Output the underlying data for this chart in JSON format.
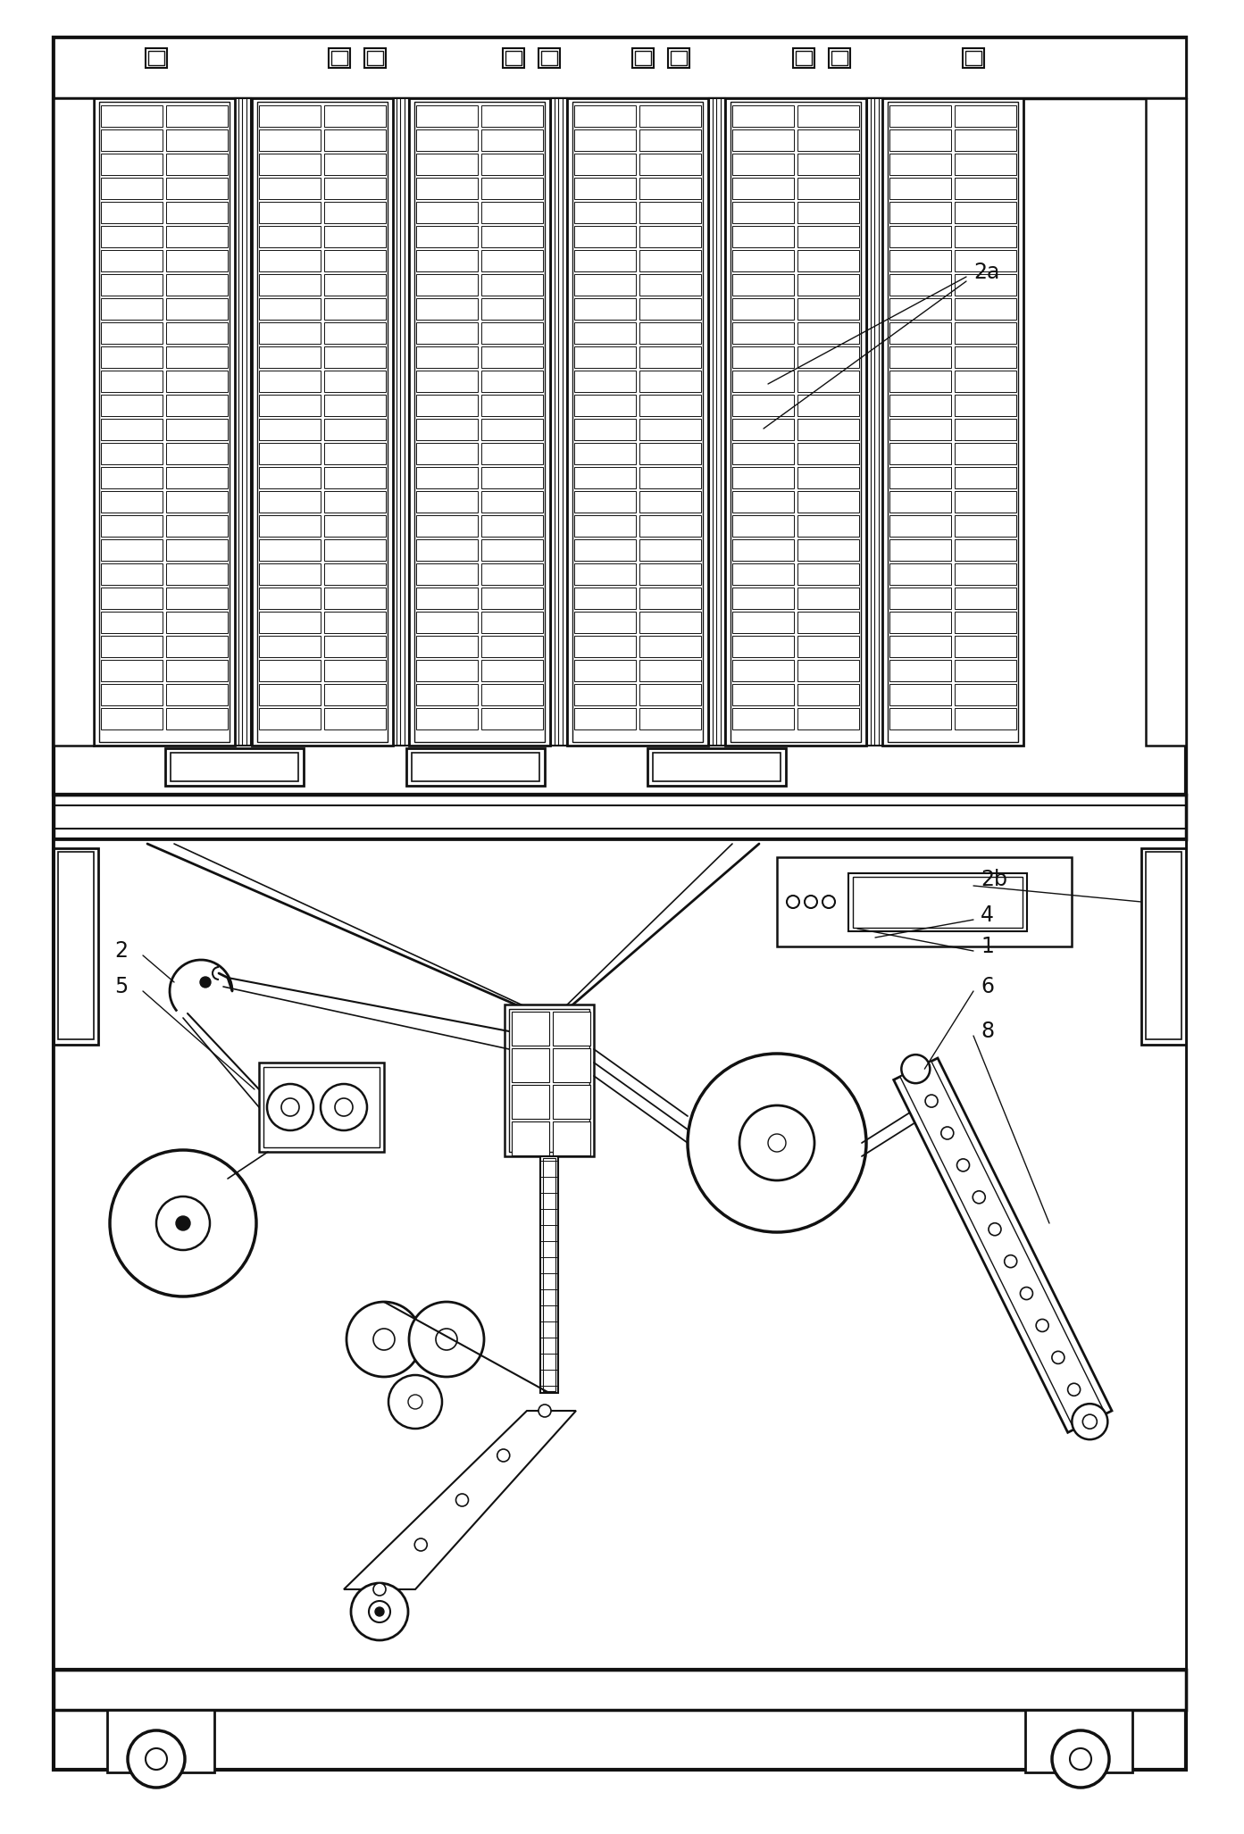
{
  "bg_color": "#ffffff",
  "line_color": "#111111",
  "lw": 1.8,
  "tlw": 3.0,
  "label_fontsize": 15
}
